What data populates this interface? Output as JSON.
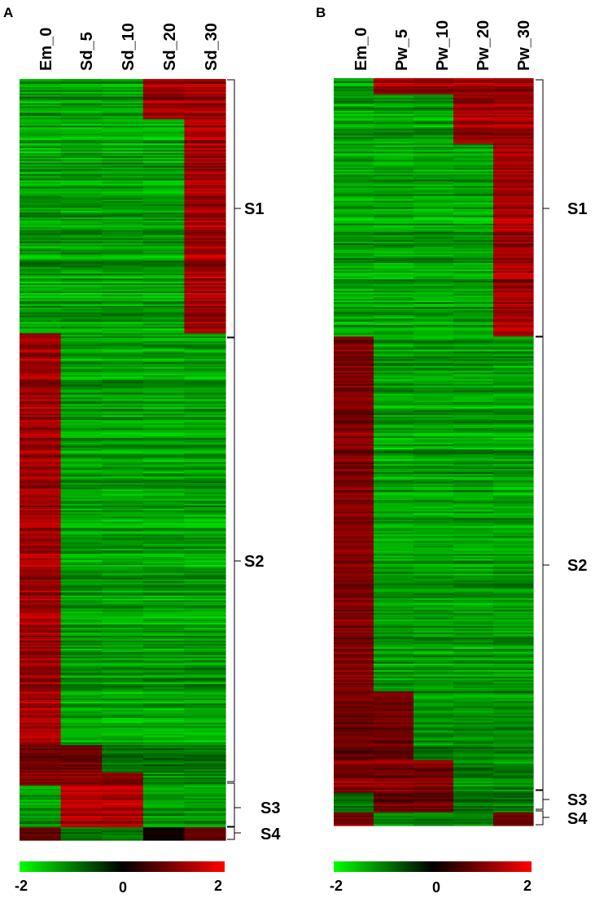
{
  "chart_data": [
    {
      "type": "heatmap",
      "panel": "A",
      "columns": [
        "Em_0",
        "Sd_5",
        "Sd_10",
        "Sd_20",
        "Sd_30"
      ],
      "clusters": [
        {
          "label": "S1",
          "rows": 158,
          "mean": [
            -1.5,
            -1.5,
            -1.5,
            -1.5,
            1.5
          ],
          "blocks": [
            {
              "rows": 25,
              "mean": [
                -1.5,
                -1.5,
                -1.5,
                1.5,
                1.5
              ]
            },
            {
              "rows": 133,
              "mean": [
                -1.5,
                -1.5,
                -1.5,
                -1.5,
                1.5
              ]
            }
          ]
        },
        {
          "label": "S2",
          "rows": 273,
          "mean": [
            1.5,
            -1.5,
            -1.5,
            -1.5,
            -1.5
          ],
          "blocks": [
            {
              "rows": 256,
              "mean": [
                1.5,
                -1.5,
                -1.5,
                -1.5,
                -1.5
              ]
            },
            {
              "rows": 17,
              "mean": [
                1.0,
                1.0,
                -1.0,
                -1.0,
                -1.0
              ]
            }
          ]
        },
        {
          "label": "S3",
          "rows": 34,
          "mean": [
            -1.5,
            1.5,
            1.5,
            -1.5,
            -1.5
          ],
          "blocks": [
            {
              "rows": 8,
              "mean": [
                1.3,
                1.3,
                1.3,
                -1.3,
                -1.3
              ]
            },
            {
              "rows": 26,
              "mean": [
                -1.4,
                1.6,
                1.6,
                -1.4,
                -1.4
              ]
            }
          ]
        },
        {
          "label": "S4",
          "rows": 8,
          "mean": [
            1.0,
            -1.2,
            -1.2,
            0.2,
            1.0
          ],
          "blocks": [
            {
              "rows": 8,
              "mean": [
                1.0,
                -1.2,
                -1.2,
                0.2,
                1.0
              ]
            }
          ]
        }
      ],
      "color_scale": {
        "min": -2,
        "mid": 0,
        "max": 2,
        "low": "#00ff00",
        "mid_color": "#000000",
        "high": "#ff0000",
        "ticks": [
          "-2",
          "0",
          "2"
        ]
      }
    },
    {
      "type": "heatmap",
      "panel": "B",
      "columns": [
        "Em_0",
        "Pw_5",
        "Pw_10",
        "Pw_20",
        "Pw_30"
      ],
      "clusters": [
        {
          "label": "S1",
          "rows": 158,
          "mean": [
            -1.5,
            -1.5,
            -1.5,
            -1.5,
            1.5
          ],
          "blocks": [
            {
              "rows": 10,
              "mean": [
                -1.5,
                1.5,
                1.5,
                1.5,
                1.5
              ]
            },
            {
              "rows": 30,
              "mean": [
                -1.5,
                -1.5,
                -1.5,
                1.5,
                1.5
              ]
            },
            {
              "rows": 118,
              "mean": [
                -1.5,
                -1.5,
                -1.5,
                -1.5,
                1.5
              ]
            }
          ]
        },
        {
          "label": "S2",
          "rows": 279,
          "mean": [
            1.2,
            -1.5,
            -1.5,
            -1.5,
            -1.5
          ],
          "blocks": [
            {
              "rows": 217,
              "mean": [
                1.2,
                -1.5,
                -1.5,
                -1.5,
                -1.5
              ]
            },
            {
              "rows": 42,
              "mean": [
                1.0,
                1.0,
                -1.3,
                -1.3,
                -1.3
              ]
            },
            {
              "rows": 20,
              "mean": [
                1.3,
                1.3,
                1.3,
                -1.3,
                -1.3
              ]
            }
          ]
        },
        {
          "label": "S3",
          "rows": 12,
          "mean": [
            -1.2,
            1.0,
            1.0,
            -1.2,
            -1.2
          ],
          "blocks": [
            {
              "rows": 12,
              "mean": [
                -1.2,
                1.0,
                1.0,
                -1.2,
                -1.2
              ]
            }
          ]
        },
        {
          "label": "S4",
          "rows": 8,
          "mean": [
            1.0,
            -1.2,
            -1.2,
            -1.2,
            1.0
          ],
          "blocks": [
            {
              "rows": 8,
              "mean": [
                1.0,
                -1.2,
                -1.2,
                -1.2,
                1.0
              ]
            }
          ]
        }
      ],
      "color_scale": {
        "min": -2,
        "mid": 0,
        "max": 2,
        "low": "#00ff00",
        "mid_color": "#000000",
        "high": "#ff0000",
        "ticks": [
          "-2",
          "0",
          "2"
        ]
      }
    }
  ]
}
